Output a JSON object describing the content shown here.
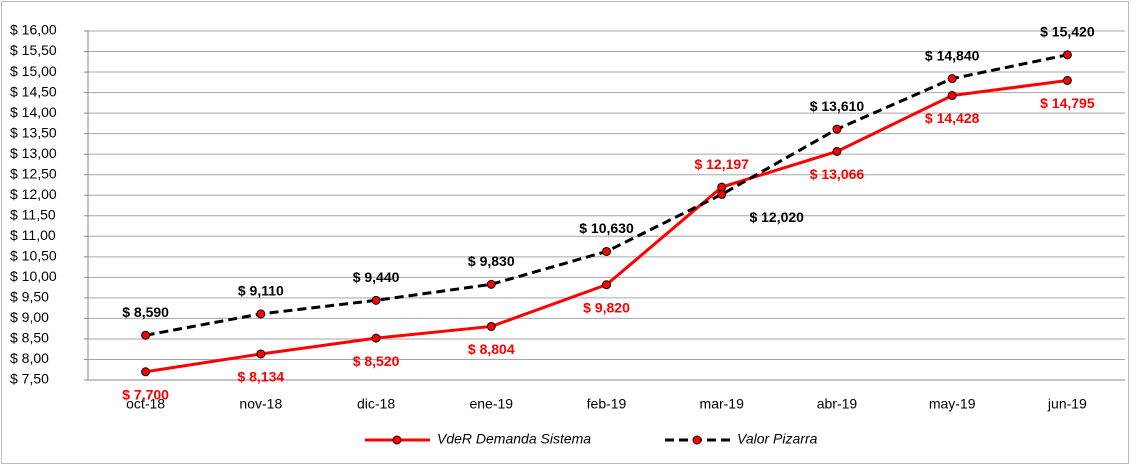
{
  "chart_data": {
    "type": "line",
    "categories": [
      "oct-18",
      "nov-18",
      "dic-18",
      "ene-19",
      "feb-19",
      "mar-19",
      "abr-19",
      "may-19",
      "jun-19"
    ],
    "series": [
      {
        "name": "VdeR Demanda Sistema",
        "color": "#ff0000",
        "dashed": false,
        "values": [
          7.7,
          8.134,
          8.52,
          8.804,
          9.82,
          12.197,
          13.066,
          14.428,
          14.795
        ],
        "value_labels": [
          "$ 7,700",
          "$ 8,134",
          "$ 8,520",
          "$ 8,804",
          "$ 9,820",
          "$ 12,197",
          "$ 13,066",
          "$ 14,428",
          "$ 14,795"
        ]
      },
      {
        "name": "Valor Pizarra",
        "color": "#000000",
        "dashed": true,
        "values": [
          8.59,
          9.11,
          9.44,
          9.83,
          10.63,
          12.02,
          13.61,
          14.84,
          15.42
        ],
        "value_labels": [
          "$ 8,590",
          "$ 9,110",
          "$ 9,440",
          "$ 9,830",
          "$ 10,630",
          "$ 12,020",
          "$ 13,610",
          "$ 14,840",
          "$ 15,420"
        ]
      }
    ],
    "ylim": [
      7.5,
      16
    ],
    "yticks": [
      {
        "value": 7.5,
        "label": "$ 7,50"
      },
      {
        "value": 8,
        "label": "$ 8,00"
      },
      {
        "value": 8.5,
        "label": "$ 8,50"
      },
      {
        "value": 9,
        "label": "$ 9,00"
      },
      {
        "value": 9.5,
        "label": "$ 9,50"
      },
      {
        "value": 10,
        "label": "$ 10,00"
      },
      {
        "value": 10.5,
        "label": "$ 10,50"
      },
      {
        "value": 11,
        "label": "$ 11,00"
      },
      {
        "value": 11.5,
        "label": "$ 11,50"
      },
      {
        "value": 12,
        "label": "$ 12,00"
      },
      {
        "value": 12.5,
        "label": "$ 12,50"
      },
      {
        "value": 13,
        "label": "$ 13,00"
      },
      {
        "value": 13.5,
        "label": "$ 13,50"
      },
      {
        "value": 14,
        "label": "$ 14,00"
      },
      {
        "value": 14.5,
        "label": "$ 14,50"
      },
      {
        "value": 15,
        "label": "$ 15,00"
      },
      {
        "value": 15.5,
        "label": "$ 15,50"
      },
      {
        "value": 16,
        "label": "$ 16,00"
      }
    ],
    "grid": true,
    "legend": "bottom"
  }
}
